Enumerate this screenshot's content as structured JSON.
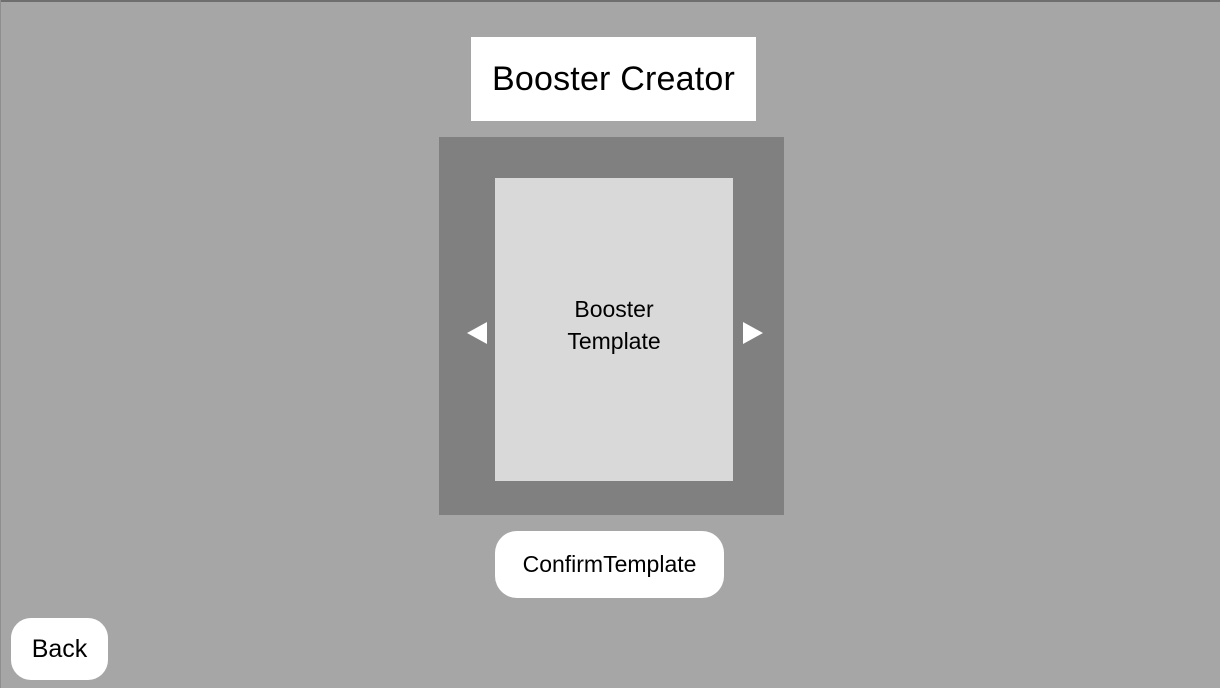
{
  "header": {
    "title": "Booster Creator"
  },
  "carousel": {
    "template_label": "Booster Template",
    "prev_icon": "triangle-left-icon",
    "next_icon": "triangle-right-icon"
  },
  "actions": {
    "confirm_label": "ConfirmTemplate",
    "back_label": "Back"
  },
  "colors": {
    "background": "#a6a6a6",
    "carousel_frame": "#808080",
    "template_card": "#d9d9d9",
    "button": "#ffffff"
  }
}
